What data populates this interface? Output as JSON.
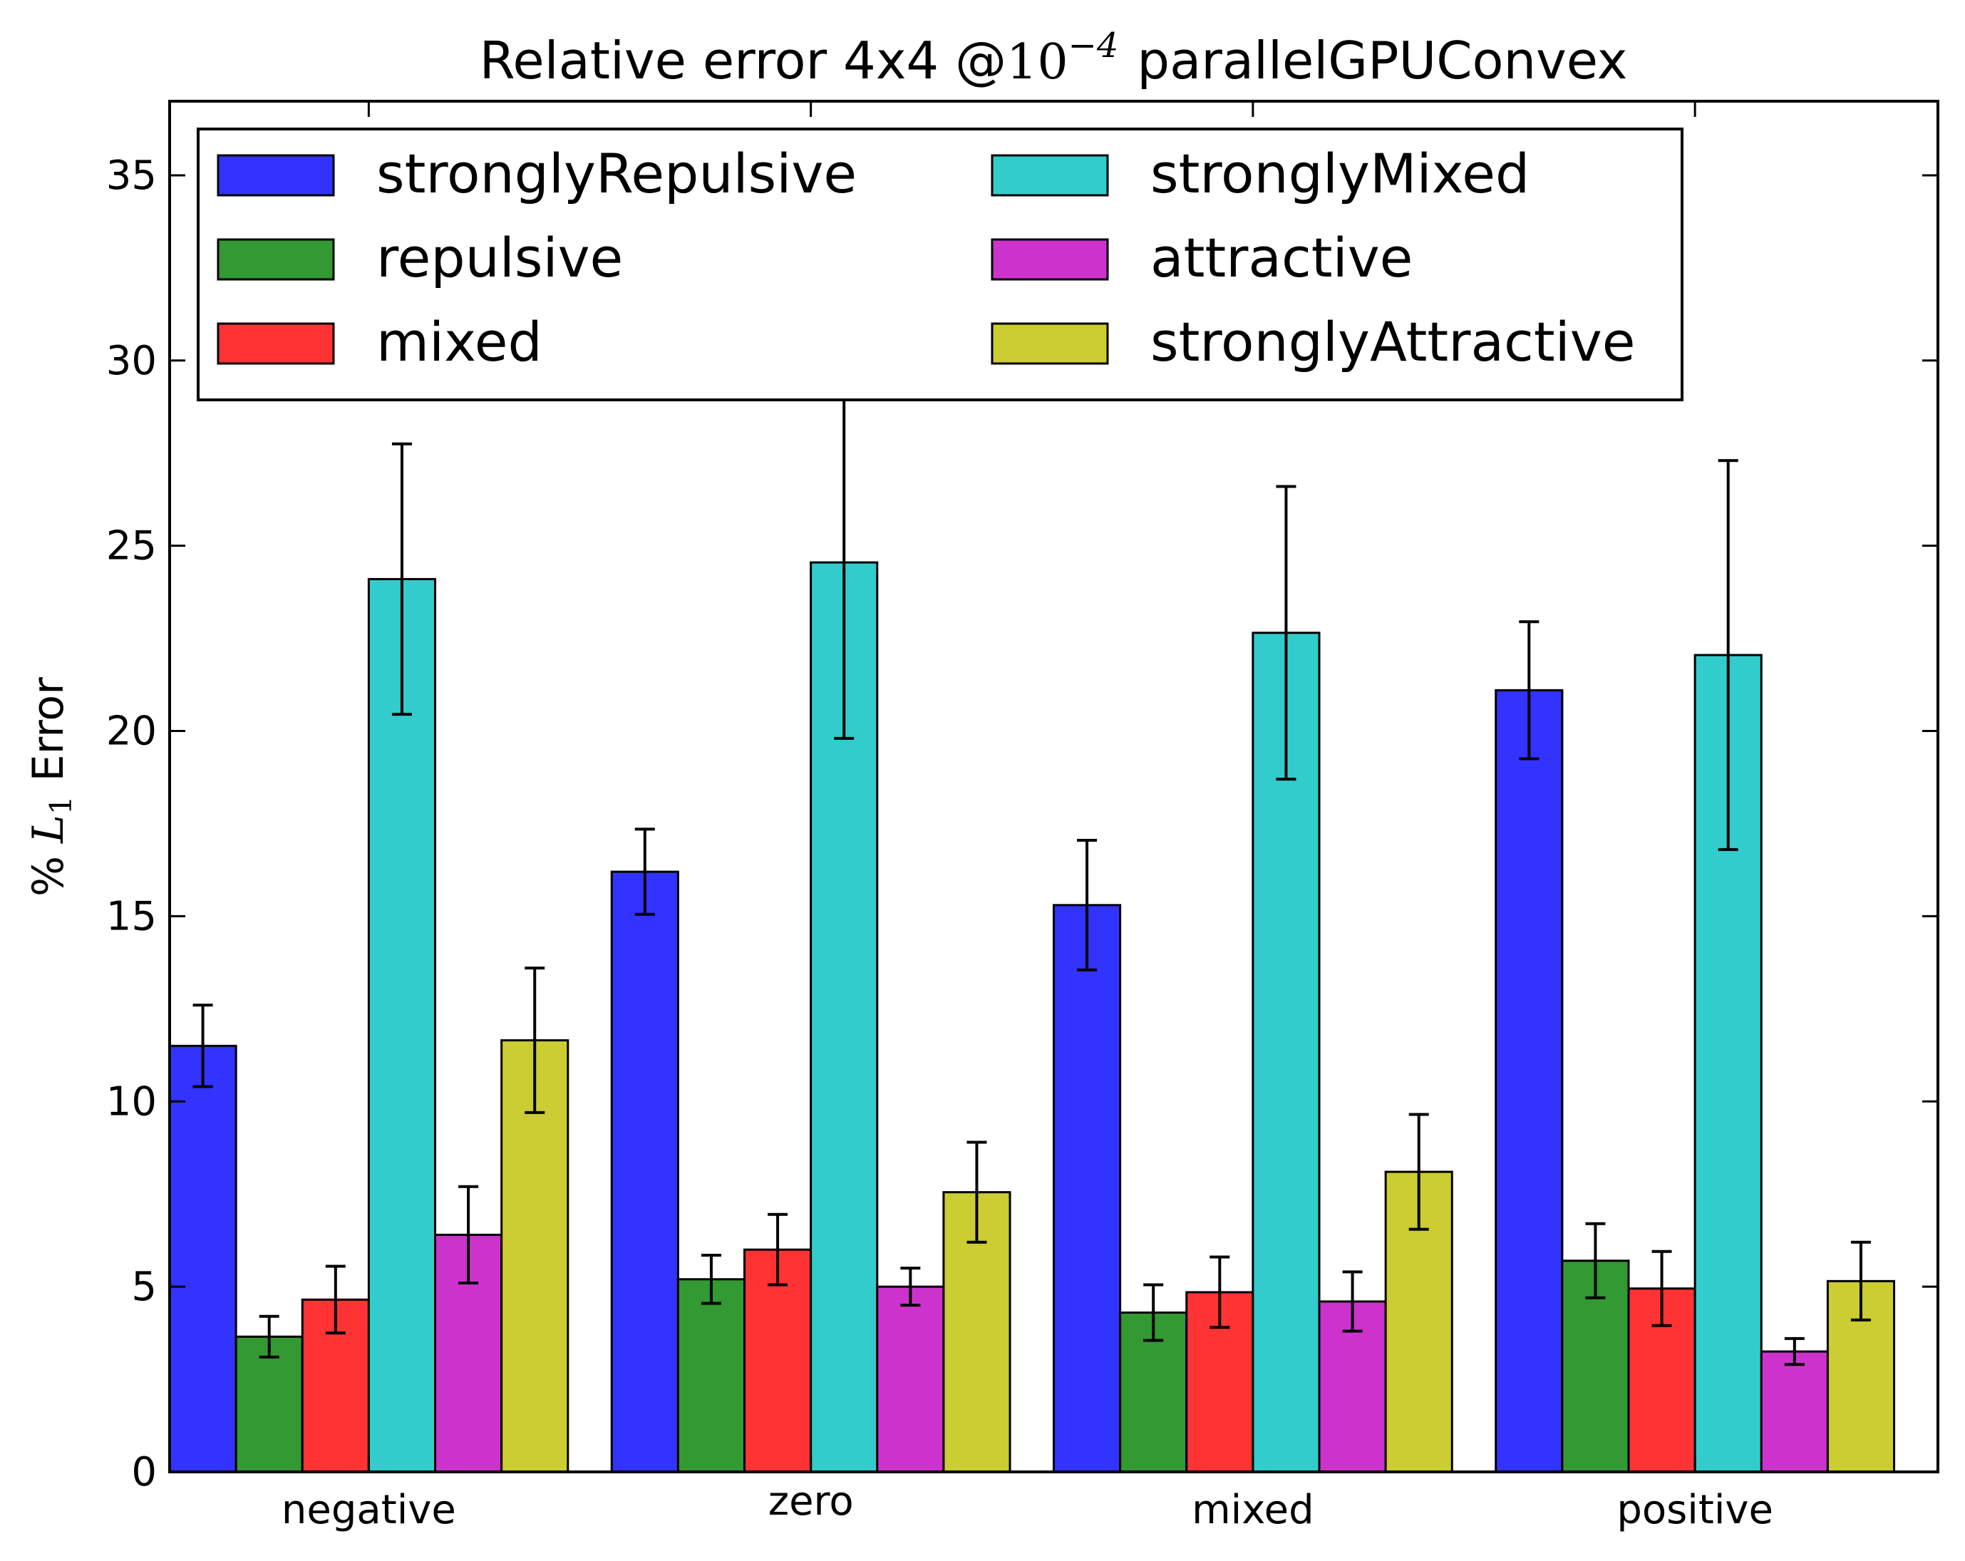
{
  "chart_data": {
    "type": "bar",
    "title": "Relative error 4x4 @",
    "title_math": {
      "base": "10",
      "exponent": "−4"
    },
    "title_suffix": "parallelGPUConvex",
    "ylabel_prefix": "%",
    "ylabel_math": {
      "base": "L",
      "subscript": "1"
    },
    "ylabel_suffix": "Error",
    "ylim": [
      0,
      37
    ],
    "yticks": [
      0,
      5,
      10,
      15,
      20,
      25,
      30,
      35
    ],
    "categories": [
      "negative",
      "zero",
      "mixed",
      "positive"
    ],
    "legend_position": "upper-left",
    "grid": false,
    "series": [
      {
        "name": "stronglyRepulsive",
        "color": "#3333ff",
        "values": [
          11.5,
          16.2,
          15.3,
          21.1
        ],
        "errors": [
          1.1,
          1.15,
          1.75,
          1.85
        ]
      },
      {
        "name": "repulsive",
        "color": "#339933",
        "values": [
          3.65,
          5.2,
          4.3,
          5.7
        ],
        "errors": [
          0.55,
          0.65,
          0.75,
          1.0
        ]
      },
      {
        "name": "mixed",
        "color": "#ff3333",
        "values": [
          4.65,
          6.0,
          4.85,
          4.95
        ],
        "errors": [
          0.9,
          0.95,
          0.95,
          1.0
        ]
      },
      {
        "name": "stronglyMixed",
        "color": "#33cccc",
        "values": [
          24.1,
          24.55,
          22.65,
          22.05
        ],
        "errors": [
          3.65,
          4.75,
          3.95,
          5.25
        ]
      },
      {
        "name": "attractive",
        "color": "#cc33cc",
        "values": [
          6.4,
          5.0,
          4.6,
          3.25
        ],
        "errors": [
          1.3,
          0.5,
          0.8,
          0.35
        ]
      },
      {
        "name": "stronglyAttractive",
        "color": "#cccc33",
        "values": [
          11.65,
          7.55,
          8.1,
          5.15
        ],
        "errors": [
          1.95,
          1.35,
          1.55,
          1.05
        ]
      }
    ]
  }
}
